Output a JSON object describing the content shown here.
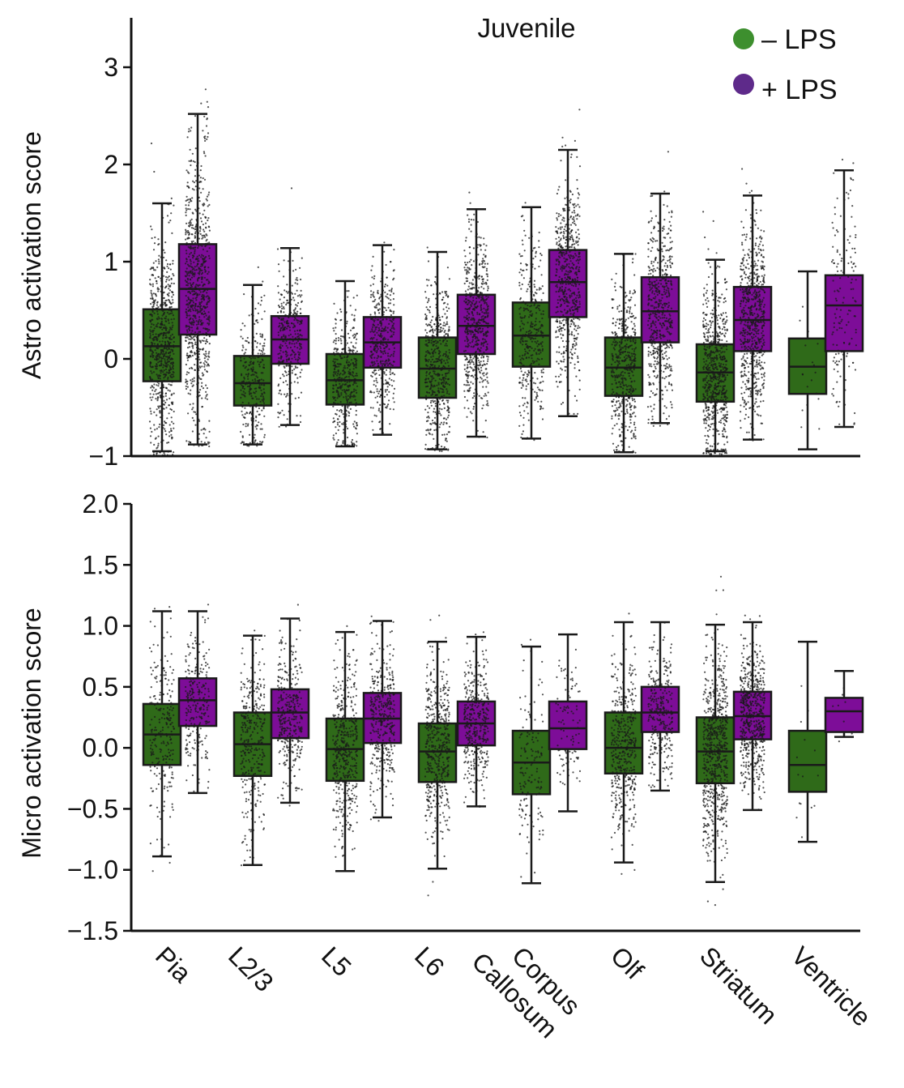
{
  "colors": {
    "minus_lps": "#2f6a19",
    "plus_lps": "#7d0d98",
    "legend_minus": "#3d8f2e",
    "legend_plus": "#5e2a8a",
    "points": "#1a1a1a",
    "axis": "#111111"
  },
  "chart_data": [
    {
      "type": "box",
      "title": "Juvenile",
      "ylabel": "Astro activation score",
      "xlabel": "",
      "ylim": [
        -1,
        3.5
      ],
      "yticks": [
        -1,
        0,
        1,
        2,
        3
      ],
      "ytick_labels": [
        "−1",
        "0",
        "1",
        "2",
        "3"
      ],
      "legend": {
        "placement": "top-right",
        "entries": [
          {
            "label": "– LPS",
            "key": "minus"
          },
          {
            "label": "+ LPS",
            "key": "plus"
          }
        ]
      },
      "categories": [
        "Pia",
        "L2/3",
        "L5",
        "L6",
        "Corpus Callosum",
        "Olf",
        "Striatum",
        "Ventricle"
      ],
      "series": [
        {
          "name": "– LPS",
          "key": "minus",
          "values": [
            {
              "whislo": -0.95,
              "q1": -0.23,
              "med": 0.13,
              "q3": 0.51,
              "whishi": 1.6,
              "n": 700,
              "spread_lo": -1.0,
              "spread_hi": 2.7
            },
            {
              "whislo": -0.88,
              "q1": -0.48,
              "med": -0.25,
              "q3": 0.03,
              "whishi": 0.76,
              "n": 300,
              "spread_lo": -0.9,
              "spread_hi": 1.45
            },
            {
              "whislo": -0.9,
              "q1": -0.47,
              "med": -0.22,
              "q3": 0.05,
              "whishi": 0.8,
              "n": 400,
              "spread_lo": -0.9,
              "spread_hi": 1.5
            },
            {
              "whislo": -0.93,
              "q1": -0.4,
              "med": -0.1,
              "q3": 0.22,
              "whishi": 1.1,
              "n": 500,
              "spread_lo": -0.95,
              "spread_hi": 1.6
            },
            {
              "whislo": -0.82,
              "q1": -0.08,
              "med": 0.24,
              "q3": 0.58,
              "whishi": 1.56,
              "n": 350,
              "spread_lo": -0.85,
              "spread_hi": 2.45
            },
            {
              "whislo": -0.96,
              "q1": -0.38,
              "med": -0.09,
              "q3": 0.22,
              "whishi": 1.08,
              "n": 500,
              "spread_lo": -0.98,
              "spread_hi": 1.55
            },
            {
              "whislo": -0.95,
              "q1": -0.44,
              "med": -0.14,
              "q3": 0.15,
              "whishi": 1.02,
              "n": 700,
              "spread_lo": -0.98,
              "spread_hi": 1.55
            },
            {
              "whislo": -0.93,
              "q1": -0.36,
              "med": -0.08,
              "q3": 0.21,
              "whishi": 0.9,
              "n": 20,
              "spread_lo": -0.9,
              "spread_hi": 0.9
            }
          ]
        },
        {
          "name": "+ LPS",
          "key": "plus",
          "values": [
            {
              "whislo": -0.88,
              "q1": 0.25,
              "med": 0.72,
              "q3": 1.18,
              "whishi": 2.52,
              "n": 800,
              "spread_lo": -0.9,
              "spread_hi": 2.9
            },
            {
              "whislo": -0.68,
              "q1": -0.05,
              "med": 0.2,
              "q3": 0.44,
              "whishi": 1.14,
              "n": 350,
              "spread_lo": -0.7,
              "spread_hi": 2.0
            },
            {
              "whislo": -0.78,
              "q1": -0.09,
              "med": 0.17,
              "q3": 0.43,
              "whishi": 1.17,
              "n": 400,
              "spread_lo": -0.8,
              "spread_hi": 1.8
            },
            {
              "whislo": -0.8,
              "q1": 0.05,
              "med": 0.34,
              "q3": 0.66,
              "whishi": 1.54,
              "n": 600,
              "spread_lo": -0.82,
              "spread_hi": 2.2
            },
            {
              "whislo": -0.59,
              "q1": 0.43,
              "med": 0.79,
              "q3": 1.12,
              "whishi": 2.15,
              "n": 600,
              "spread_lo": -0.7,
              "spread_hi": 2.6
            },
            {
              "whislo": -0.66,
              "q1": 0.17,
              "med": 0.49,
              "q3": 0.84,
              "whishi": 1.7,
              "n": 550,
              "spread_lo": -0.7,
              "spread_hi": 2.7
            },
            {
              "whislo": -0.83,
              "q1": 0.08,
              "med": 0.4,
              "q3": 0.74,
              "whishi": 1.68,
              "n": 700,
              "spread_lo": -0.85,
              "spread_hi": 2.1
            },
            {
              "whislo": -0.7,
              "q1": 0.08,
              "med": 0.55,
              "q3": 0.86,
              "whishi": 1.94,
              "n": 150,
              "spread_lo": -0.7,
              "spread_hi": 2.4
            }
          ]
        }
      ]
    },
    {
      "type": "box",
      "title": "",
      "ylabel": "Micro activation score",
      "xlabel": "",
      "ylim": [
        -1.5,
        2.0
      ],
      "yticks": [
        -1.5,
        -1.0,
        -0.5,
        0.0,
        0.5,
        1.0,
        1.5,
        2.0
      ],
      "ytick_labels": [
        "−1.5",
        "−1.0",
        "−0.5",
        "0.0",
        "0.5",
        "1.0",
        "1.5",
        "2.0"
      ],
      "categories": [
        "Pia",
        "L2/3",
        "L5",
        "L6",
        "Corpus Callosum",
        "Olf",
        "Striatum",
        "Ventricle"
      ],
      "category_labels": [
        [
          "Pia"
        ],
        [
          "L2/3"
        ],
        [
          "L5"
        ],
        [
          "L6"
        ],
        [
          "Corpus",
          "Callosum"
        ],
        [
          "Olf"
        ],
        [
          "Striatum"
        ],
        [
          "Ventricle"
        ]
      ],
      "series": [
        {
          "name": "– LPS",
          "key": "minus",
          "values": [
            {
              "whislo": -0.89,
              "q1": -0.14,
              "med": 0.11,
              "q3": 0.36,
              "whishi": 1.12,
              "n": 250,
              "spread_lo": -1.1,
              "spread_hi": 1.8
            },
            {
              "whislo": -0.96,
              "q1": -0.23,
              "med": 0.03,
              "q3": 0.29,
              "whishi": 0.92,
              "n": 350,
              "spread_lo": -1.3,
              "spread_hi": 1.55
            },
            {
              "whislo": -1.01,
              "q1": -0.27,
              "med": -0.01,
              "q3": 0.24,
              "whishi": 0.95,
              "n": 450,
              "spread_lo": -1.2,
              "spread_hi": 1.35
            },
            {
              "whislo": -0.99,
              "q1": -0.28,
              "med": -0.03,
              "q3": 0.2,
              "whishi": 0.87,
              "n": 500,
              "spread_lo": -1.3,
              "spread_hi": 1.45
            },
            {
              "whislo": -1.11,
              "q1": -0.38,
              "med": -0.12,
              "q3": 0.14,
              "whishi": 0.83,
              "n": 150,
              "spread_lo": -1.1,
              "spread_hi": 1.15
            },
            {
              "whislo": -0.94,
              "q1": -0.21,
              "med": 0.0,
              "q3": 0.29,
              "whishi": 1.03,
              "n": 450,
              "spread_lo": -1.3,
              "spread_hi": 1.55
            },
            {
              "whislo": -1.1,
              "q1": -0.29,
              "med": -0.03,
              "q3": 0.25,
              "whishi": 1.01,
              "n": 700,
              "spread_lo": -1.3,
              "spread_hi": 1.5
            },
            {
              "whislo": -0.77,
              "q1": -0.36,
              "med": -0.14,
              "q3": 0.14,
              "whishi": 0.87,
              "n": 15,
              "spread_lo": -0.77,
              "spread_hi": 0.87
            }
          ]
        },
        {
          "name": "+ LPS",
          "key": "plus",
          "values": [
            {
              "whislo": -0.37,
              "q1": 0.18,
              "med": 0.39,
              "q3": 0.57,
              "whishi": 1.12,
              "n": 250,
              "spread_lo": -0.37,
              "spread_hi": 1.35
            },
            {
              "whislo": -0.45,
              "q1": 0.08,
              "med": 0.29,
              "q3": 0.48,
              "whishi": 1.06,
              "n": 350,
              "spread_lo": -0.5,
              "spread_hi": 1.95
            },
            {
              "whislo": -0.57,
              "q1": 0.04,
              "med": 0.24,
              "q3": 0.45,
              "whishi": 1.04,
              "n": 400,
              "spread_lo": -0.6,
              "spread_hi": 1.4
            },
            {
              "whislo": -0.48,
              "q1": 0.02,
              "med": 0.2,
              "q3": 0.38,
              "whishi": 0.91,
              "n": 400,
              "spread_lo": -0.5,
              "spread_hi": 1.4
            },
            {
              "whislo": -0.52,
              "q1": -0.01,
              "med": 0.16,
              "q3": 0.38,
              "whishi": 0.93,
              "n": 100,
              "spread_lo": -0.52,
              "spread_hi": 1.3
            },
            {
              "whislo": -0.35,
              "q1": 0.13,
              "med": 0.29,
              "q3": 0.5,
              "whishi": 1.03,
              "n": 300,
              "spread_lo": -0.35,
              "spread_hi": 1.35
            },
            {
              "whislo": -0.51,
              "q1": 0.07,
              "med": 0.26,
              "q3": 0.46,
              "whishi": 1.03,
              "n": 600,
              "spread_lo": -0.55,
              "spread_hi": 1.75
            },
            {
              "whislo": 0.09,
              "q1": 0.13,
              "med": 0.3,
              "q3": 0.41,
              "whishi": 0.63,
              "n": 8,
              "spread_lo": -0.6,
              "spread_hi": 0.63
            }
          ]
        }
      ]
    }
  ]
}
